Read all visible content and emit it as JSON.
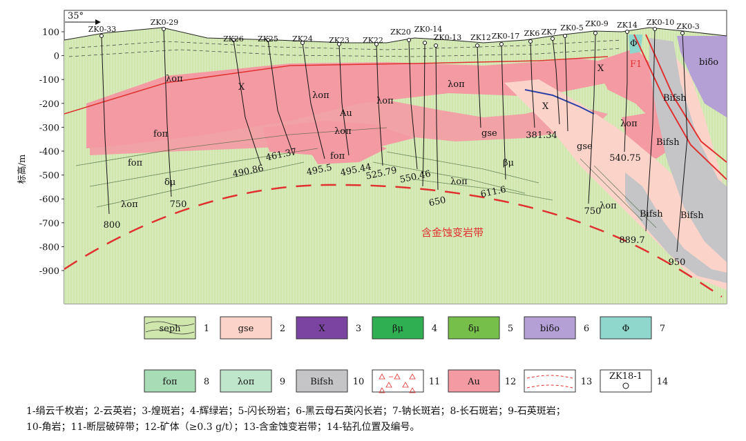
{
  "axis": {
    "ylabel": "标高/m",
    "ticks": [
      "100",
      "0",
      "-100",
      "-200",
      "-300",
      "-400",
      "-500",
      "-600",
      "-700",
      "-800",
      "-900"
    ],
    "orientation": "35°"
  },
  "drillholes": [
    "ZK0-33",
    "ZK0-29",
    "ZK26",
    "ZK25",
    "ZK24",
    "ZK23",
    "ZK22",
    "ZK20",
    "ZK0-14",
    "ZK0-13",
    "ZK12",
    "ZK0-17",
    "ZK6",
    "ZK7",
    "ZK0-5",
    "ZK0-9",
    "ZK14",
    "ZK0-10",
    "ZK0-3"
  ],
  "depths": [
    "800",
    "750",
    "490.86",
    "461.37",
    "495.5",
    "495.44",
    "525.79",
    "550.46",
    "650",
    "611.6",
    "381.34",
    "750",
    "540.75",
    "889.7",
    "950"
  ],
  "labels": {
    "lop": "λoπ",
    "fop": "foπ",
    "dmu": "δμ",
    "bmu": "βμ",
    "gse": "gse",
    "X": "X",
    "Au": "Au",
    "Bifsh": "Bifsh",
    "bido": "biδo",
    "phi": "Φ",
    "F1": "F1",
    "zone": "含金蚀变岩带"
  },
  "legend": [
    {
      "num": "1",
      "text": "seph",
      "color": "#cfe6ad"
    },
    {
      "num": "2",
      "text": "gse",
      "color": "#fbd3c8"
    },
    {
      "num": "3",
      "text": "X",
      "color": "#7a44a0"
    },
    {
      "num": "4",
      "text": "βμ",
      "color": "#2fae52"
    },
    {
      "num": "5",
      "text": "δμ",
      "color": "#76bf4a"
    },
    {
      "num": "6",
      "text": "biδo",
      "color": "#b5a0d6"
    },
    {
      "num": "7",
      "text": "Φ",
      "color": "#8fd6cc"
    },
    {
      "num": "8",
      "text": "foπ",
      "color": "#a8dcb6"
    },
    {
      "num": "9",
      "text": "λoπ",
      "color": "#bfe6cb"
    },
    {
      "num": "10",
      "text": "Bifsh",
      "color": "#c5c5c8"
    },
    {
      "num": "11",
      "text": "",
      "color": "#ffffff"
    },
    {
      "num": "12",
      "text": "Au",
      "color": "#f49aa3"
    },
    {
      "num": "13",
      "text": "",
      "color": "#ffffff"
    },
    {
      "num": "14",
      "text": "ZK18-1",
      "color": "#ffffff"
    }
  ],
  "caption": {
    "line1": "1-绢云千枚岩；2-云英岩；3-煌斑岩；4-辉绿岩；5-闪长玢岩；6-黑云母石英闪长岩；7-钠长斑岩；8-长石斑岩；9-石英斑岩；",
    "line2": "10-角岩；11-断层破碎带；12-矿体（≥0.3 g/t）；13-含金蚀变岩带；14-钻孔位置及编号。"
  },
  "colors": {
    "background": "#cfe6ad",
    "ore": "#f49aa3",
    "gse": "#fbd3c8",
    "hornfels": "#c5c5c8",
    "diorite": "#b5a0d6",
    "fault": "#e03030",
    "zone": "#e83333"
  }
}
